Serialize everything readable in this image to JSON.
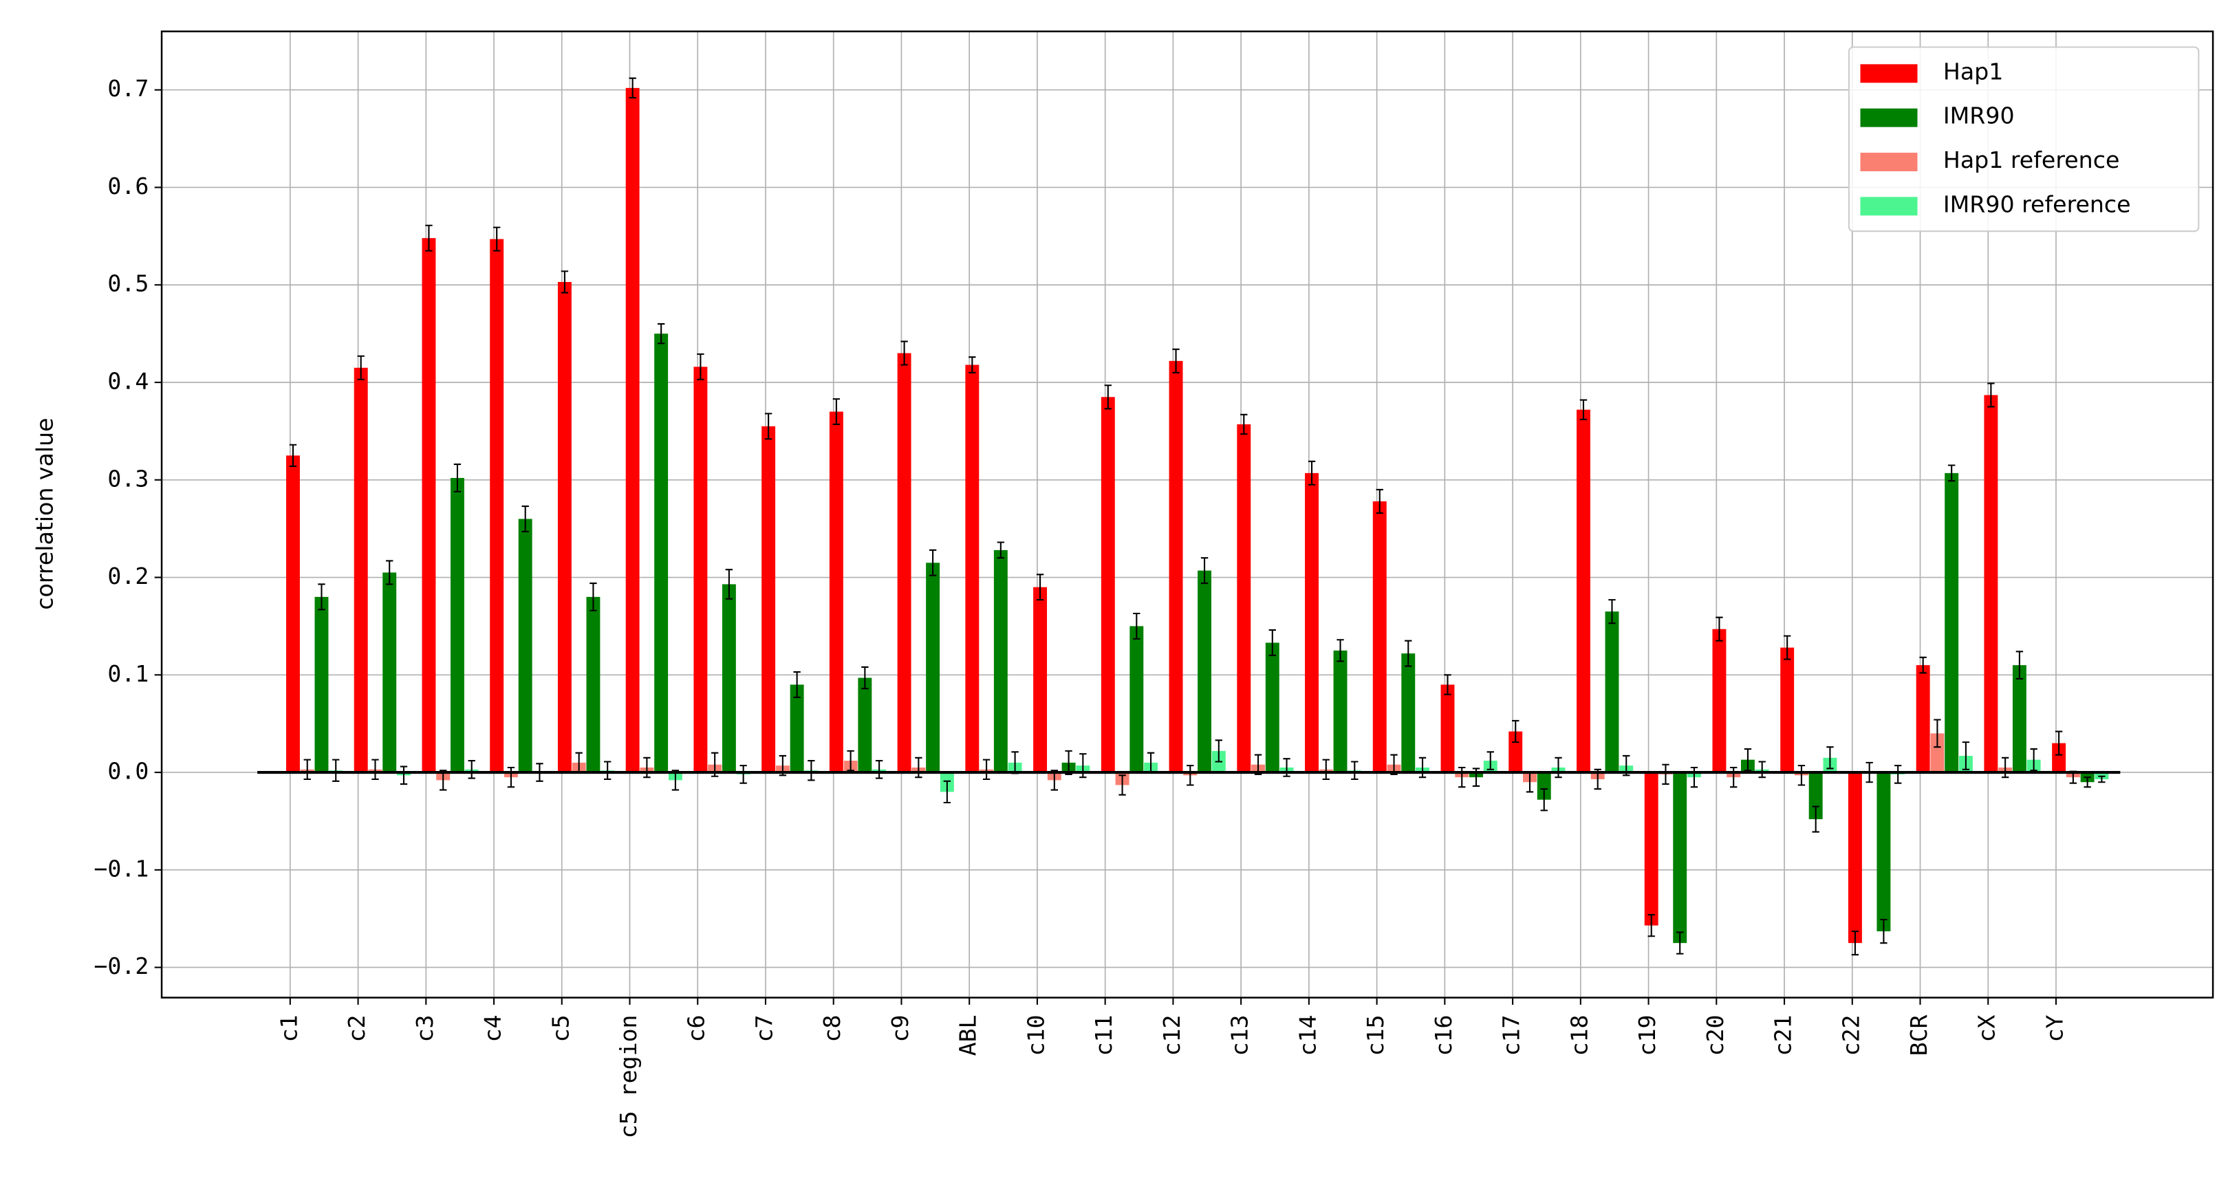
{
  "chart_data": {
    "type": "bar",
    "ylabel": "correlation value",
    "categories": [
      "c1",
      "c2",
      "c3",
      "c4",
      "c5",
      "c5 region",
      "c6",
      "c7",
      "c8",
      "c9",
      "ABL",
      "c10",
      "c11",
      "c12",
      "c13",
      "c14",
      "c15",
      "c16",
      "c17",
      "c18",
      "c19",
      "c20",
      "c21",
      "c22",
      "BCR",
      "cX",
      "cY"
    ],
    "series": [
      {
        "name": "Hap1",
        "color": "#ff0000",
        "values": [
          0.325,
          0.415,
          0.548,
          0.547,
          0.503,
          0.702,
          0.416,
          0.355,
          0.37,
          0.43,
          0.418,
          0.19,
          0.385,
          0.422,
          0.357,
          0.307,
          0.278,
          0.09,
          0.042,
          0.372,
          -0.157,
          0.147,
          0.128,
          -0.175,
          0.11,
          0.387,
          0.03
        ],
        "errors": [
          0.011,
          0.012,
          0.013,
          0.012,
          0.011,
          0.01,
          0.013,
          0.013,
          0.013,
          0.012,
          0.008,
          0.013,
          0.012,
          0.012,
          0.01,
          0.012,
          0.012,
          0.01,
          0.011,
          0.01,
          0.011,
          0.012,
          0.012,
          0.012,
          0.008,
          0.012,
          0.012
        ]
      },
      {
        "name": "Hap1 reference",
        "color": "#fa8072",
        "values": [
          0.003,
          0.003,
          -0.008,
          -0.005,
          0.01,
          0.005,
          0.008,
          0.007,
          0.012,
          0.005,
          0.003,
          -0.008,
          -0.013,
          -0.003,
          0.008,
          0.003,
          0.008,
          -0.005,
          -0.01,
          -0.007,
          -0.002,
          -0.005,
          -0.003,
          0.0,
          0.04,
          0.005,
          -0.005
        ],
        "errors": [
          0.01,
          0.01,
          0.01,
          0.01,
          0.01,
          0.01,
          0.012,
          0.01,
          0.01,
          0.01,
          0.01,
          0.01,
          0.01,
          0.01,
          0.01,
          0.01,
          0.01,
          0.01,
          0.01,
          0.01,
          0.01,
          0.01,
          0.01,
          0.01,
          0.014,
          0.01,
          0.006
        ]
      },
      {
        "name": "IMR90",
        "color": "#008000",
        "values": [
          0.18,
          0.205,
          0.302,
          0.26,
          0.18,
          0.45,
          0.193,
          0.09,
          0.097,
          0.215,
          0.228,
          0.01,
          0.15,
          0.207,
          0.133,
          0.125,
          0.122,
          -0.005,
          -0.028,
          0.165,
          -0.175,
          0.013,
          -0.048,
          -0.163,
          0.307,
          0.11,
          -0.01
        ],
        "errors": [
          0.013,
          0.012,
          0.014,
          0.013,
          0.014,
          0.01,
          0.015,
          0.013,
          0.011,
          0.013,
          0.008,
          0.012,
          0.013,
          0.013,
          0.013,
          0.011,
          0.013,
          0.009,
          0.011,
          0.012,
          0.011,
          0.011,
          0.013,
          0.012,
          0.008,
          0.014,
          0.005
        ]
      },
      {
        "name": "IMR90 reference",
        "color": "#4cf590",
        "values": [
          0.002,
          -0.003,
          0.003,
          0.0,
          0.002,
          -0.008,
          -0.002,
          0.002,
          0.003,
          -0.02,
          0.01,
          0.007,
          0.01,
          0.022,
          0.005,
          0.002,
          0.005,
          0.012,
          0.005,
          0.007,
          -0.005,
          0.003,
          0.015,
          -0.002,
          0.017,
          0.013,
          -0.007
        ],
        "errors": [
          0.011,
          0.009,
          0.009,
          0.009,
          0.009,
          0.01,
          0.009,
          0.01,
          0.009,
          0.011,
          0.011,
          0.012,
          0.01,
          0.011,
          0.009,
          0.009,
          0.01,
          0.009,
          0.01,
          0.01,
          0.01,
          0.008,
          0.011,
          0.009,
          0.014,
          0.011,
          0.003
        ]
      }
    ],
    "ylim": [
      -0.231,
      0.76
    ],
    "yticks": [
      {
        "value": -0.2,
        "label": "−0.2"
      },
      {
        "value": -0.1,
        "label": "−0.1"
      },
      {
        "value": 0,
        "label": "0.0"
      },
      0.1,
      0.2,
      0.3,
      0.4,
      0.5,
      0.6,
      0.7
    ],
    "grid": true,
    "legend": "upper right"
  }
}
